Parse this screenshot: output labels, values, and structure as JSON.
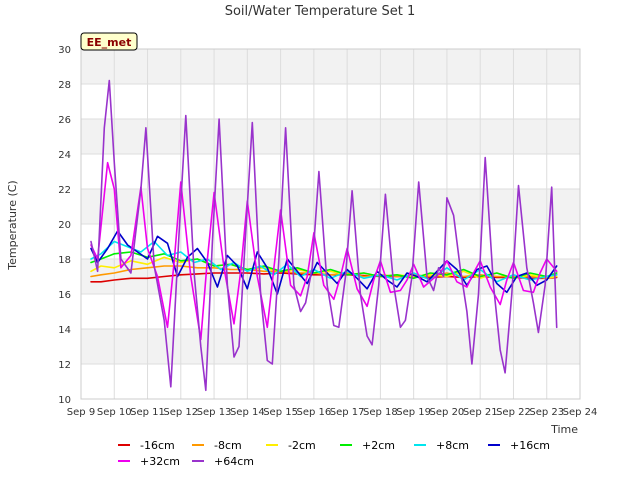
{
  "chart_data": {
    "type": "line",
    "title": "Soil/Water Temperature Set 1",
    "xlabel": "Time",
    "ylabel": "Temperature (C)",
    "badge": "EE_met",
    "ylim": [
      10,
      30
    ],
    "xlim": [
      9,
      24
    ],
    "yticks": [
      10,
      12,
      14,
      16,
      18,
      20,
      22,
      24,
      26,
      28,
      30
    ],
    "xtick_labels": [
      "Sep 9",
      "Sep 10",
      "Sep 11",
      "Sep 12",
      "Sep 13",
      "Sep 14",
      "Sep 15",
      "Sep 16",
      "Sep 17",
      "Sep 18",
      "Sep 19",
      "Sep 20",
      "Sep 21",
      "Sep 22",
      "Sep 23",
      "Sep 24"
    ],
    "grid": true,
    "legend_position": "bottom",
    "series": [
      {
        "name": "-16cm",
        "color": "#dd0000",
        "x": [
          9.3,
          9.6,
          10.0,
          10.5,
          11.0,
          11.5,
          12.0,
          12.5,
          13.0,
          13.5,
          14.0,
          14.5,
          15.0,
          15.5,
          16.0,
          16.5,
          17.0,
          17.5,
          18.0,
          18.5,
          19.0,
          19.5,
          20.0,
          20.5,
          21.0,
          21.5,
          22.0,
          22.5,
          23.0,
          23.3
        ],
        "y": [
          16.7,
          16.7,
          16.8,
          16.9,
          16.9,
          17.0,
          17.1,
          17.15,
          17.2,
          17.2,
          17.2,
          17.15,
          17.2,
          17.15,
          17.1,
          17.1,
          17.1,
          17.05,
          17.0,
          17.0,
          17.0,
          16.95,
          17.0,
          16.95,
          17.0,
          16.95,
          16.95,
          16.9,
          16.9,
          16.95
        ]
      },
      {
        "name": "-8cm",
        "color": "#ff9900",
        "x": [
          9.3,
          9.6,
          10.0,
          10.5,
          11.0,
          11.5,
          12.0,
          12.5,
          13.0,
          13.5,
          14.0,
          14.5,
          15.0,
          15.5,
          16.0,
          16.5,
          17.0,
          17.5,
          18.0,
          18.5,
          19.0,
          19.5,
          20.0,
          20.5,
          21.0,
          21.5,
          22.0,
          22.5,
          23.0,
          23.3
        ],
        "y": [
          17.0,
          17.1,
          17.2,
          17.4,
          17.5,
          17.6,
          17.6,
          17.5,
          17.5,
          17.4,
          17.4,
          17.3,
          17.3,
          17.2,
          17.2,
          17.1,
          17.2,
          17.0,
          17.1,
          17.0,
          17.1,
          17.0,
          17.2,
          17.0,
          17.1,
          17.0,
          17.0,
          17.0,
          17.0,
          17.1
        ]
      },
      {
        "name": "-2cm",
        "color": "#ffee00",
        "x": [
          9.3,
          9.6,
          10.0,
          10.5,
          11.0,
          11.5,
          12.0,
          12.5,
          13.0,
          13.5,
          14.0,
          14.5,
          15.0,
          15.5,
          16.0,
          16.5,
          17.0,
          17.5,
          18.0,
          18.5,
          19.0,
          19.5,
          20.0,
          20.5,
          21.0,
          21.5,
          22.0,
          22.5,
          23.0,
          23.3
        ],
        "y": [
          17.3,
          17.6,
          17.5,
          17.9,
          17.7,
          18.1,
          17.8,
          18.0,
          17.6,
          17.7,
          17.4,
          17.5,
          17.3,
          17.4,
          17.2,
          17.3,
          17.1,
          17.2,
          17.0,
          17.1,
          17.0,
          17.1,
          17.0,
          17.3,
          16.9,
          17.2,
          16.9,
          17.1,
          16.9,
          17.0
        ]
      },
      {
        "name": "+2cm",
        "color": "#00ee00",
        "x": [
          9.3,
          9.6,
          10.0,
          10.5,
          11.0,
          11.5,
          12.0,
          12.5,
          13.0,
          13.5,
          14.0,
          14.5,
          15.0,
          15.5,
          16.0,
          16.5,
          17.0,
          17.5,
          18.0,
          18.5,
          19.0,
          19.5,
          20.0,
          20.5,
          21.0,
          21.5,
          22.0,
          22.5,
          23.0,
          23.3
        ],
        "y": [
          17.8,
          18.0,
          18.3,
          18.4,
          18.1,
          18.3,
          17.9,
          18.0,
          17.6,
          17.7,
          17.4,
          17.6,
          17.3,
          17.5,
          17.2,
          17.4,
          17.1,
          17.2,
          17.0,
          17.1,
          16.9,
          17.2,
          17.1,
          17.4,
          17.0,
          17.2,
          16.9,
          17.2,
          17.0,
          17.2
        ]
      },
      {
        "name": "+8cm",
        "color": "#00e5ee",
        "x": [
          9.3,
          9.6,
          10.0,
          10.4,
          10.8,
          11.2,
          11.6,
          12.0,
          12.4,
          12.8,
          13.2,
          13.6,
          14.0,
          14.4,
          14.8,
          15.2,
          15.6,
          16.0,
          16.5,
          17.0,
          17.5,
          18.0,
          18.5,
          19.0,
          19.5,
          20.0,
          20.5,
          21.0,
          21.5,
          22.0,
          22.5,
          23.0,
          23.3
        ],
        "y": [
          18.0,
          18.3,
          19.0,
          18.7,
          18.4,
          19.0,
          18.2,
          18.4,
          17.8,
          18.0,
          17.4,
          17.8,
          17.3,
          17.6,
          17.1,
          17.7,
          17.0,
          17.4,
          16.9,
          17.3,
          16.9,
          17.1,
          16.8,
          17.2,
          16.8,
          17.5,
          16.8,
          17.4,
          16.7,
          17.1,
          16.8,
          17.0,
          17.1
        ]
      },
      {
        "name": "+16cm",
        "color": "#0000cc",
        "x": [
          9.3,
          9.5,
          9.8,
          10.1,
          10.4,
          10.7,
          11.0,
          11.3,
          11.6,
          11.9,
          12.2,
          12.5,
          12.8,
          13.1,
          13.4,
          13.7,
          14.0,
          14.3,
          14.6,
          14.9,
          15.2,
          15.5,
          15.8,
          16.1,
          16.4,
          16.7,
          17.0,
          17.3,
          17.6,
          17.9,
          18.2,
          18.5,
          18.8,
          19.1,
          19.4,
          19.7,
          20.0,
          20.3,
          20.6,
          20.9,
          21.2,
          21.5,
          21.8,
          22.1,
          22.4,
          22.7,
          23.0,
          23.3
        ],
        "y": [
          18.6,
          17.8,
          18.6,
          19.6,
          18.8,
          18.4,
          18.0,
          19.3,
          18.9,
          17.0,
          18.1,
          18.6,
          17.8,
          16.4,
          18.2,
          17.6,
          16.3,
          18.4,
          17.5,
          16.0,
          18.0,
          17.3,
          16.6,
          17.8,
          17.2,
          16.6,
          17.4,
          16.9,
          16.3,
          17.3,
          16.8,
          16.4,
          17.2,
          17.0,
          16.7,
          17.3,
          17.9,
          17.4,
          16.5,
          17.4,
          17.6,
          16.6,
          16.1,
          17.0,
          17.2,
          16.5,
          16.8,
          17.6
        ]
      },
      {
        "name": "+32cm",
        "color": "#ee00ee",
        "x": [
          9.3,
          9.5,
          9.8,
          10.0,
          10.2,
          10.5,
          10.8,
          11.0,
          11.3,
          11.6,
          11.8,
          12.0,
          12.3,
          12.6,
          12.8,
          13.0,
          13.3,
          13.6,
          13.8,
          14.0,
          14.3,
          14.6,
          14.8,
          15.0,
          15.3,
          15.6,
          15.8,
          16.0,
          16.3,
          16.6,
          16.8,
          17.0,
          17.3,
          17.6,
          17.8,
          18.0,
          18.3,
          18.6,
          18.8,
          19.0,
          19.3,
          19.6,
          19.8,
          20.0,
          20.3,
          20.6,
          20.8,
          21.0,
          21.3,
          21.6,
          21.8,
          22.0,
          22.3,
          22.6,
          22.8,
          23.0,
          23.3
        ],
        "y": [
          18.8,
          18.0,
          23.5,
          22.0,
          17.5,
          18.2,
          22.1,
          18.6,
          17.0,
          14.1,
          17.8,
          22.4,
          17.0,
          13.4,
          18.0,
          21.8,
          17.5,
          14.3,
          17.3,
          21.3,
          17.0,
          14.1,
          17.5,
          20.8,
          16.5,
          15.9,
          17.0,
          19.5,
          16.5,
          15.7,
          17.0,
          18.6,
          16.3,
          15.3,
          16.8,
          17.9,
          16.1,
          16.2,
          16.8,
          17.7,
          16.4,
          16.9,
          17.2,
          17.9,
          16.7,
          16.4,
          17.2,
          17.9,
          16.4,
          15.4,
          16.8,
          17.8,
          16.2,
          16.1,
          17.2,
          18.0,
          17.3
        ]
      },
      {
        "name": "+64cm",
        "color": "#9933cc",
        "x": [
          9.3,
          9.5,
          9.7,
          9.85,
          10.0,
          10.2,
          10.5,
          10.8,
          10.95,
          11.2,
          11.5,
          11.7,
          11.95,
          12.15,
          12.4,
          12.6,
          12.75,
          12.95,
          13.15,
          13.4,
          13.6,
          13.75,
          13.95,
          14.15,
          14.4,
          14.6,
          14.75,
          14.95,
          15.15,
          15.4,
          15.6,
          15.75,
          15.95,
          16.15,
          16.4,
          16.6,
          16.75,
          16.95,
          17.15,
          17.4,
          17.6,
          17.75,
          17.95,
          18.15,
          18.4,
          18.6,
          18.75,
          18.95,
          19.15,
          19.4,
          19.6,
          19.75,
          19.9,
          20.0,
          20.2,
          20.4,
          20.6,
          20.75,
          20.95,
          21.15,
          21.4,
          21.6,
          21.75,
          21.95,
          22.15,
          22.4,
          22.6,
          22.75,
          22.95,
          23.15,
          23.3
        ],
        "y": [
          19.0,
          17.3,
          25.5,
          28.2,
          23.5,
          18.0,
          17.2,
          22.0,
          25.5,
          17.6,
          14.5,
          10.7,
          19.5,
          26.2,
          17.2,
          13.0,
          10.5,
          19.0,
          26.0,
          16.5,
          12.4,
          13.0,
          19.5,
          25.8,
          16.0,
          12.2,
          12.0,
          18.0,
          25.5,
          16.5,
          15.0,
          15.5,
          17.5,
          23.0,
          16.5,
          14.2,
          14.1,
          17.0,
          21.9,
          16.0,
          13.6,
          13.1,
          16.5,
          21.7,
          16.5,
          14.1,
          14.5,
          17.0,
          22.4,
          17.0,
          16.2,
          17.5,
          17.0,
          21.5,
          20.5,
          17.5,
          15.0,
          12.0,
          16.0,
          23.8,
          16.5,
          12.8,
          11.5,
          16.0,
          22.2,
          17.5,
          15.5,
          13.8,
          16.5,
          22.1,
          14.1
        ]
      }
    ]
  }
}
